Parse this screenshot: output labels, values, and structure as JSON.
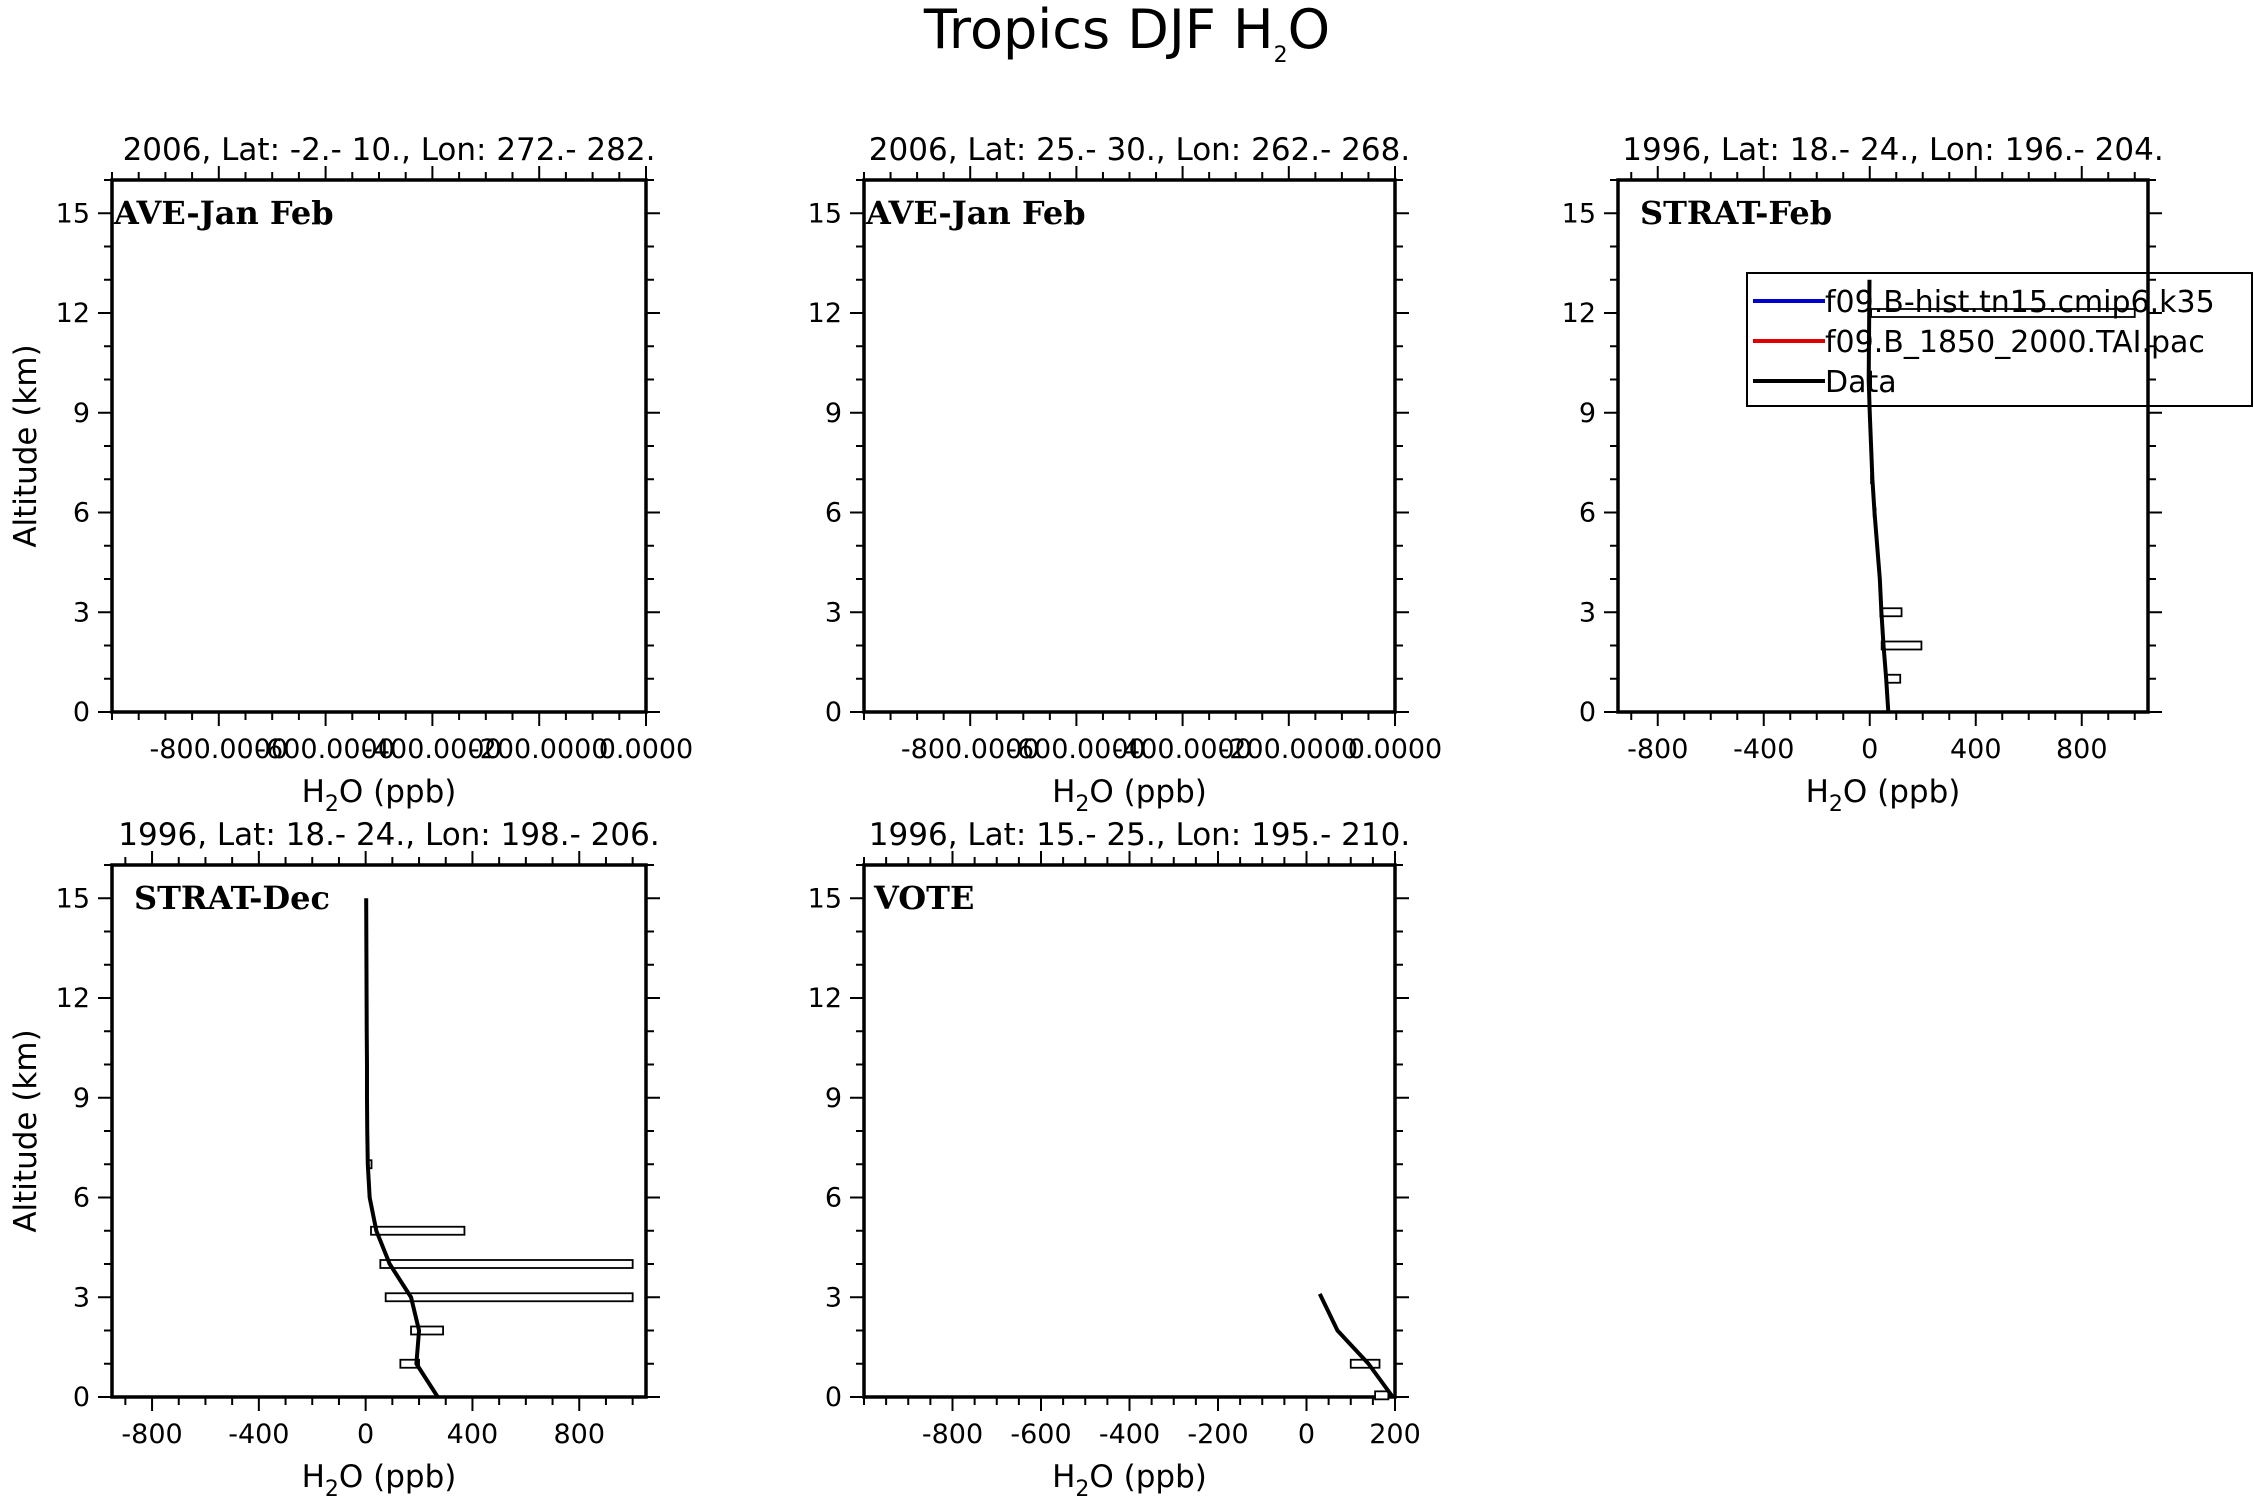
{
  "figure": {
    "title_main": "Tropics DJF H",
    "title_sub": "2",
    "title_end": "O",
    "y_label": "Altitude (km)",
    "x_label_pre": "H",
    "x_label_sub": "2",
    "x_label_post": "O (ppb)"
  },
  "colors": {
    "model1": "#0000cc",
    "model2": "#e00000",
    "data": "#000000"
  },
  "chart_data": [
    {
      "type": "line",
      "title": "2006, Lat: -2.- 10., Lon: 272.- 282.",
      "label": "AVE-Jan Feb",
      "xlim": [
        -1000,
        0
      ],
      "x_ticks": [
        -800,
        -600,
        -400,
        -200,
        0
      ],
      "x_tick_labels": [
        "-800.0000",
        "-600.0000",
        "-400.0000",
        "-200.0000",
        "0.0000"
      ],
      "ylim": [
        0,
        16
      ],
      "y_ticks": [
        0,
        3,
        6,
        9,
        12,
        15
      ],
      "xlabel": "H2O (ppb)",
      "ylabel": "Altitude (km)",
      "series": [],
      "bars": []
    },
    {
      "type": "line",
      "title": "2006, Lat: 25.- 30., Lon: 262.- 268.",
      "label": "AVE-Jan Feb",
      "xlim": [
        -1000,
        0
      ],
      "x_ticks": [
        -800,
        -600,
        -400,
        -200,
        0
      ],
      "x_tick_labels": [
        "-800.0000",
        "-600.0000",
        "-400.0000",
        "-200.0000",
        "0.0000"
      ],
      "ylim": [
        0,
        16
      ],
      "y_ticks": [
        0,
        3,
        6,
        9,
        12,
        15
      ],
      "xlabel": "H2O (ppb)",
      "ylabel": "",
      "series": [],
      "bars": []
    },
    {
      "type": "line",
      "title": "1996, Lat: 18.- 24., Lon: 196.- 204.",
      "label": "STRAT-Feb",
      "xlim": [
        -950,
        1050
      ],
      "x_ticks": [
        -800,
        -400,
        0,
        400,
        800
      ],
      "x_tick_labels": [
        "-800",
        "-400",
        "0",
        "400",
        "800"
      ],
      "ylim": [
        0,
        16
      ],
      "y_ticks": [
        0,
        3,
        6,
        9,
        12,
        15
      ],
      "xlabel": "H2O (ppb)",
      "ylabel": "",
      "legend": {
        "position": "top-right",
        "entries": [
          {
            "name": "f09.B-hist.tn15.cmip6.k35",
            "color_key": "model1"
          },
          {
            "name": "f09.B_1850_2000.TAI.pac",
            "color_key": "model2"
          },
          {
            "name": "Data",
            "color_key": "data"
          }
        ]
      },
      "series": [
        {
          "name": "Data",
          "x": [
            70,
            62,
            52,
            44,
            38,
            28,
            18,
            10,
            5,
            0,
            -4,
            -3,
            -1
          ],
          "y": [
            0,
            1,
            2,
            3,
            4,
            5,
            6,
            7,
            8,
            9,
            10,
            11,
            13
          ]
        }
      ],
      "bars": [
        {
          "y": 1,
          "x0": 60,
          "x1": 115
        },
        {
          "y": 2,
          "x0": 45,
          "x1": 195
        },
        {
          "y": 3,
          "x0": 40,
          "x1": 120
        },
        {
          "y": 6,
          "x0": 15,
          "x1": 22
        },
        {
          "y": 7,
          "x0": 5,
          "x1": 12
        },
        {
          "y": 12,
          "x0": 5,
          "x1": 1000
        }
      ]
    },
    {
      "type": "line",
      "title": "1996, Lat: 18.- 24., Lon: 198.- 206.",
      "label": "STRAT-Dec",
      "xlim": [
        -950,
        1050
      ],
      "x_ticks": [
        -800,
        -400,
        0,
        400,
        800
      ],
      "x_tick_labels": [
        "-800",
        "-400",
        "0",
        "400",
        "800"
      ],
      "ylim": [
        0,
        16
      ],
      "y_ticks": [
        0,
        3,
        6,
        9,
        12,
        15
      ],
      "xlabel": "H2O (ppb)",
      "ylabel": "Altitude (km)",
      "series": [
        {
          "name": "Data",
          "x": [
            270,
            190,
            200,
            170,
            90,
            40,
            15,
            8,
            6,
            5,
            5,
            4,
            3,
            2
          ],
          "y": [
            0,
            1,
            2,
            3,
            4,
            5,
            6,
            7,
            8,
            9,
            10,
            11,
            13,
            15
          ]
        }
      ],
      "bars": [
        {
          "y": 1,
          "x0": 130,
          "x1": 200
        },
        {
          "y": 2,
          "x0": 170,
          "x1": 290
        },
        {
          "y": 3,
          "x0": 75,
          "x1": 1000
        },
        {
          "y": 4,
          "x0": 55,
          "x1": 1000
        },
        {
          "y": 5,
          "x0": 20,
          "x1": 370
        },
        {
          "y": 7,
          "x0": 8,
          "x1": 22
        }
      ]
    },
    {
      "type": "line",
      "title": "1996, Lat: 15.- 25., Lon: 195.- 210.",
      "label": "VOTE",
      "xlim": [
        -1000,
        200
      ],
      "x_ticks": [
        -800,
        -600,
        -400,
        -200,
        0,
        200
      ],
      "x_tick_labels": [
        "-800",
        "-600",
        "-400",
        "-200",
        "0",
        "200"
      ],
      "ylim": [
        0,
        16
      ],
      "y_ticks": [
        0,
        3,
        6,
        9,
        12,
        15
      ],
      "xlabel": "H2O (ppb)",
      "ylabel": "",
      "series": [
        {
          "name": "Data",
          "x": [
            195,
            140,
            70,
            30
          ],
          "y": [
            0,
            1,
            2,
            3.1
          ]
        }
      ],
      "bars": [
        {
          "y": 1,
          "x0": 100,
          "x1": 165
        },
        {
          "y": 0.05,
          "x0": 155,
          "x1": 185
        }
      ]
    }
  ]
}
